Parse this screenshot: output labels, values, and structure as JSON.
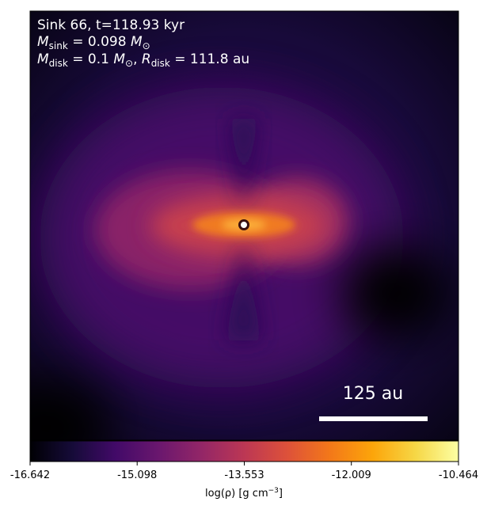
{
  "chart_data": {
    "type": "density-map",
    "title": "Sink 66, t=118.93 kyr",
    "annotation_lines": [
      [
        {
          "text": "M"
        },
        {
          "sub": "sink"
        },
        {
          "text": " = 0.098 "
        },
        {
          "text": "M"
        },
        {
          "sub": "⊙"
        }
      ],
      [
        {
          "text": "M"
        },
        {
          "sub": "disk"
        },
        {
          "text": " = 0.1 "
        },
        {
          "text": "M"
        },
        {
          "sub": "⊙"
        },
        {
          "text": ", "
        },
        {
          "text": "R"
        },
        {
          "sub": "disk"
        },
        {
          "text": " = 111.8 au"
        }
      ]
    ],
    "scale_bar_label": "125 au",
    "colorbar": {
      "clim": [
        -16.642,
        -10.464
      ],
      "ticks": [
        -16.642,
        -15.098,
        -13.553,
        -12.009,
        -10.464
      ],
      "label": [
        {
          "text": "log(ρ) [g cm"
        },
        {
          "sup": "−3"
        },
        {
          "text": "]"
        }
      ]
    }
  }
}
